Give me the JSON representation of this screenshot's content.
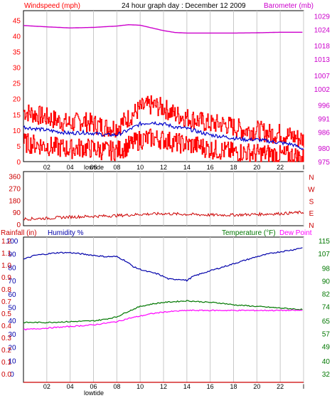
{
  "header": {
    "left_title": "Windspeed (mph)",
    "center_title": "24 hour graph day : December 12 2009",
    "right_title": "Barometer (mb)"
  },
  "colors": {
    "windspeed": "#ff0000",
    "gust": "#ff0000",
    "average": "#0000cc",
    "barometer": "#cc00cc",
    "direction": "#cc0000",
    "humidity": "#0000aa",
    "temperature": "#007700",
    "dewpoint": "#ff00ff",
    "rainfall": "#cc0000",
    "grid": "#c8c8c8",
    "lowtide_line": "#999999"
  },
  "chart_data": [
    {
      "type": "line",
      "name": "wind-barometer",
      "x_ticks": [
        "02",
        "04",
        "06",
        "08",
        "10",
        "12",
        "14",
        "16",
        "18",
        "20",
        "22",
        "I"
      ],
      "x_annotation": "lowtide",
      "left_axis": {
        "label": "Windspeed (mph)",
        "ticks": [
          0,
          5,
          10,
          15,
          20,
          25,
          30,
          35,
          40,
          45
        ],
        "range": [
          0,
          48
        ]
      },
      "right_axis": {
        "label": "Barometer (mb)",
        "ticks": [
          975,
          980,
          986,
          991,
          996,
          1002,
          1007,
          1013,
          1018,
          1024,
          1029
        ],
        "range": [
          975,
          1031
        ]
      },
      "series": [
        {
          "color_key": "gust",
          "axis": "left",
          "x": [
            0,
            1,
            2,
            3,
            4,
            5,
            6,
            7,
            8,
            9,
            10,
            11,
            12,
            13,
            14,
            15,
            16,
            17,
            18,
            19,
            20,
            21,
            22,
            23,
            24
          ],
          "values": [
            16,
            15,
            14,
            13,
            12,
            13,
            12,
            11,
            11,
            14,
            17,
            18,
            17,
            15,
            14,
            13,
            12,
            12,
            11,
            10,
            10,
            9,
            9,
            8,
            7
          ]
        },
        {
          "color_key": "average",
          "axis": "left",
          "x": [
            0,
            1,
            2,
            3,
            4,
            5,
            6,
            7,
            8,
            9,
            10,
            11,
            12,
            13,
            14,
            15,
            16,
            17,
            18,
            19,
            20,
            21,
            22,
            23,
            24
          ],
          "values": [
            11,
            10.5,
            10,
            9.5,
            9,
            9.3,
            9,
            8.5,
            8.5,
            10,
            12,
            12.5,
            12,
            11,
            10.5,
            9.5,
            8.5,
            8,
            7.5,
            7,
            7,
            6.5,
            6,
            5.5,
            4
          ]
        },
        {
          "color_key": "windspeed",
          "axis": "left",
          "x": [
            0,
            1,
            2,
            3,
            4,
            5,
            6,
            7,
            8,
            9,
            10,
            11,
            12,
            13,
            14,
            15,
            16,
            17,
            18,
            19,
            20,
            21,
            22,
            23,
            24
          ],
          "values": [
            6,
            5.5,
            5,
            4.5,
            4,
            4.5,
            4,
            3.5,
            3.5,
            5,
            7,
            7.5,
            7,
            6,
            5.5,
            5,
            4,
            3.5,
            3,
            3,
            2.5,
            2.5,
            2,
            2,
            1
          ]
        },
        {
          "color_key": "barometer",
          "axis": "right",
          "x": [
            0,
            2,
            4,
            6,
            8,
            9,
            10,
            11,
            12,
            13,
            14,
            16,
            18,
            20,
            22,
            24
          ],
          "values": [
            1025.5,
            1025,
            1024.6,
            1024.8,
            1025.3,
            1025.8,
            1025.6,
            1024.6,
            1023.6,
            1022.9,
            1022.7,
            1022.7,
            1022.7,
            1022.8,
            1023,
            1023
          ]
        }
      ]
    },
    {
      "type": "line",
      "name": "wind-direction",
      "left_axis": {
        "ticks": [
          0,
          90,
          180,
          270,
          360
        ],
        "range": [
          0,
          380
        ]
      },
      "right_labels": [
        "N",
        "W",
        "S",
        "E",
        "N"
      ],
      "series": [
        {
          "color_key": "direction",
          "x": [
            0,
            2,
            4,
            6,
            8,
            10,
            12,
            14,
            16,
            18,
            20,
            22,
            24
          ],
          "values": [
            40,
            45,
            55,
            60,
            65,
            75,
            80,
            75,
            70,
            70,
            75,
            80,
            90
          ]
        }
      ]
    },
    {
      "type": "line",
      "name": "humidity-temperature",
      "left_axis_label": "Rainfall (in)",
      "left_axis_label2": "Humidity %",
      "right_axis_label": "Temperature (°F)",
      "right_axis_label2": "Dew Point",
      "humidity_ticks": [
        0,
        10,
        20,
        30,
        40,
        50,
        60,
        70,
        80,
        90,
        100
      ],
      "rain_ticks": [
        "0.0",
        "0.1",
        "0.2",
        "0.3",
        "0.4",
        "0.5",
        "0.7",
        "0.8",
        "0.9",
        "1.0",
        "1.1",
        "1.2"
      ],
      "temp_ticks": [
        32,
        40,
        49,
        57,
        65,
        74,
        82,
        90,
        98,
        107,
        115
      ],
      "x_ticks": [
        "02",
        "04",
        "06",
        "08",
        "10",
        "12",
        "14",
        "16",
        "18",
        "20",
        "22",
        "I"
      ],
      "x_annotation": "lowtide",
      "series": [
        {
          "color_key": "humidity",
          "axis": "humidity",
          "x": [
            0,
            1,
            2,
            3,
            4,
            5,
            6,
            7,
            8,
            8.7,
            9.5,
            10.5,
            11.5,
            12.5,
            13.5,
            14,
            14.5,
            15.5,
            17,
            18.5,
            20,
            21.5,
            23,
            24
          ],
          "values": [
            86,
            89,
            90,
            91,
            91,
            90,
            89,
            88,
            88,
            85,
            80,
            77,
            75,
            71,
            71,
            70,
            73,
            76,
            80,
            84,
            88,
            91,
            93,
            95
          ]
        },
        {
          "color_key": "temperature",
          "axis": "temperature",
          "x": [
            0,
            2,
            4,
            6,
            7,
            8,
            9,
            10,
            11,
            12,
            13,
            14,
            15,
            16,
            17,
            18,
            19,
            20,
            21,
            22,
            23,
            24
          ],
          "values": [
            64,
            64,
            64.5,
            65,
            66,
            67.5,
            71,
            74,
            75.5,
            76.5,
            77,
            77.5,
            77,
            76.5,
            76,
            75,
            74.5,
            74,
            73.5,
            73,
            72.5,
            72
          ]
        },
        {
          "color_key": "dewpoint",
          "axis": "temperature",
          "x": [
            0,
            2,
            4,
            6,
            7,
            8,
            9,
            10,
            11,
            12,
            13,
            14,
            16,
            18,
            20,
            22,
            24
          ],
          "values": [
            59.5,
            60.5,
            61.5,
            62.5,
            63.5,
            64.5,
            66.5,
            68,
            69.5,
            70.5,
            71,
            71.5,
            71.5,
            71.5,
            71.5,
            71.5,
            71.5
          ]
        },
        {
          "color_key": "rainfall",
          "axis": "rain",
          "x": [
            0,
            24
          ],
          "values": [
            0,
            0
          ]
        }
      ]
    }
  ]
}
